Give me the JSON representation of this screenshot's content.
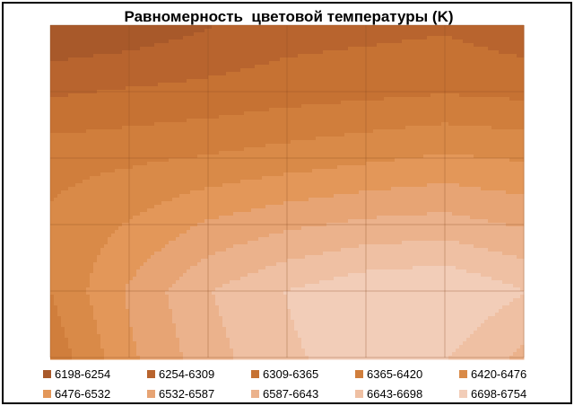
{
  "chart_data": {
    "type": "contour",
    "title": "Равномерность  цветовой температуры (K)",
    "xlabel": "",
    "ylabel": "",
    "grid": true,
    "legend_position": "bottom",
    "grid_cols": 7,
    "grid_rows": 6,
    "z": [
      [
        6198,
        6215,
        6250,
        6280,
        6290,
        6300,
        6270
      ],
      [
        6300,
        6315,
        6325,
        6340,
        6350,
        6360,
        6350
      ],
      [
        6400,
        6410,
        6425,
        6445,
        6465,
        6485,
        6470
      ],
      [
        6430,
        6480,
        6540,
        6575,
        6600,
        6610,
        6580
      ],
      [
        6420,
        6540,
        6640,
        6700,
        6740,
        6754,
        6700
      ],
      [
        6380,
        6520,
        6620,
        6690,
        6720,
        6700,
        6630
      ]
    ],
    "levels": [
      6198,
      6254,
      6309,
      6365,
      6420,
      6476,
      6532,
      6587,
      6643,
      6698,
      6754
    ],
    "legend": [
      {
        "label": "6198-6254",
        "color": "#a8592a"
      },
      {
        "label": "6254-6309",
        "color": "#b8642e"
      },
      {
        "label": "6309-6365",
        "color": "#c67233"
      },
      {
        "label": "6365-6420",
        "color": "#d07e3c"
      },
      {
        "label": "6420-6476",
        "color": "#d98a48"
      },
      {
        "label": "6476-6532",
        "color": "#e39759"
      },
      {
        "label": "6532-6587",
        "color": "#e7a474"
      },
      {
        "label": "6587-6643",
        "color": "#ebb28c"
      },
      {
        "label": "6643-6698",
        "color": "#efc0a3"
      },
      {
        "label": "6698-6754",
        "color": "#f2cdb8"
      }
    ]
  }
}
